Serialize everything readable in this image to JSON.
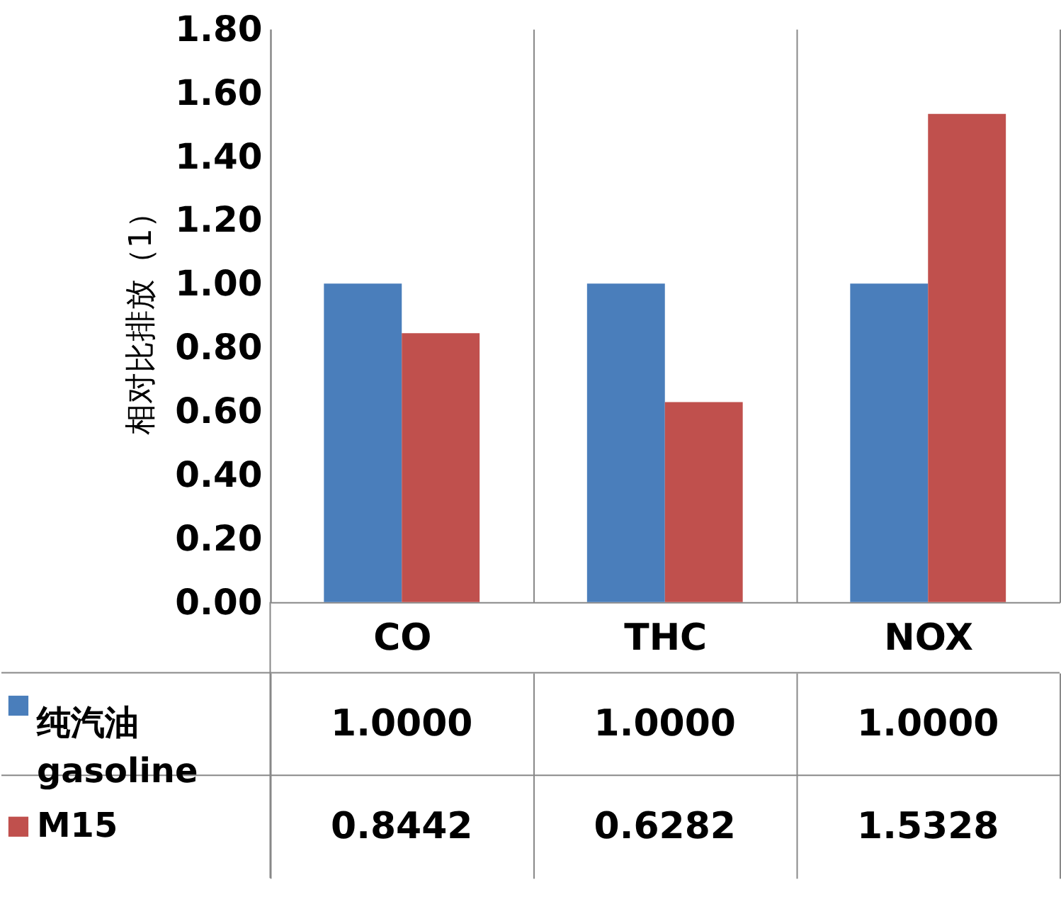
{
  "chart_data": {
    "type": "bar",
    "ylabel": "相对比排放（1）",
    "categories": [
      "CO",
      "THC",
      "NOX"
    ],
    "series": [
      {
        "name": "纯汽油 gasoline",
        "color": "#4a7ebb",
        "values": [
          1.0,
          1.0,
          1.0
        ],
        "value_labels": [
          "1.0000",
          "1.0000",
          "1.0000"
        ]
      },
      {
        "name": "M15",
        "color": "#c0504d",
        "values": [
          0.8442,
          0.6282,
          1.5328
        ],
        "value_labels": [
          "0.8442",
          "0.6282",
          "1.5328"
        ]
      }
    ],
    "ylim": [
      0,
      1.8
    ],
    "yticks": [
      {
        "value": 0,
        "label": "0.00"
      },
      {
        "value": 0.2,
        "label": "0.20"
      },
      {
        "value": 0.4,
        "label": "0.40"
      },
      {
        "value": 0.6,
        "label": "0.60"
      },
      {
        "value": 0.8,
        "label": "0.80"
      },
      {
        "value": 1.0,
        "label": "1.00"
      },
      {
        "value": 1.2,
        "label": "1.20"
      },
      {
        "value": 1.4,
        "label": "1.40"
      },
      {
        "value": 1.6,
        "label": "1.60"
      },
      {
        "value": 1.8,
        "label": "1.80"
      }
    ],
    "grid": "x",
    "legend": "bottom"
  }
}
